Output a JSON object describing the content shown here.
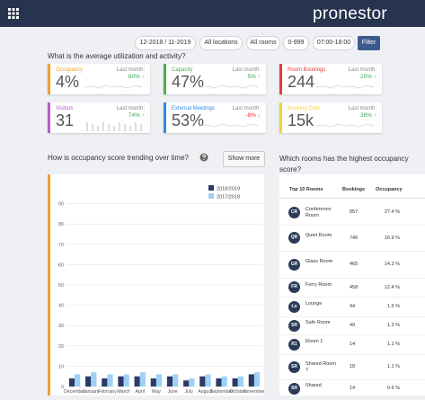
{
  "header": {
    "logo": "pronestor"
  },
  "filters": {
    "items": [
      "12-2018 / 11-2019",
      "All locations",
      "All rooms",
      "0-999",
      "07:00-18:00"
    ],
    "button": "Filter"
  },
  "utilization": {
    "title": "What is the average utilization and activity?",
    "cards": [
      {
        "label": "Occupancy",
        "last_month": "Last month:",
        "change": "60% ↑",
        "value": "4%",
        "color": "#f0a030",
        "change_color": "#3aa757"
      },
      {
        "label": "Capacity",
        "last_month": "Last month:",
        "change": "5% ↑",
        "value": "47%",
        "color": "#4caf50",
        "change_color": "#3aa757"
      },
      {
        "label": "Room Bookings",
        "last_month": "Last month:",
        "change": "25% ↑",
        "value": "244",
        "color": "#e53935",
        "change_color": "#3aa757"
      },
      {
        "label": "Visitors",
        "last_month": "Last month:",
        "change": "74% ↑",
        "value": "31",
        "color": "#b061c8",
        "change_color": "#3aa757"
      },
      {
        "label": "External Meetings",
        "last_month": "Last month:",
        "change": "-8% ↓",
        "value": "53%",
        "color": "#2f8de4",
        "change_color": "#e53935"
      },
      {
        "label": "Booking Cost",
        "last_month": "Last month:",
        "change": "38% ↑",
        "value": "15k",
        "color": "#f3d233",
        "change_color": "#3aa757"
      }
    ]
  },
  "trend": {
    "title": "How is occupancy score trending over time?",
    "button": "Show more"
  },
  "occupancy_chart": {
    "type": "bar",
    "categories": [
      "December",
      "January",
      "February",
      "March",
      "April",
      "May",
      "June",
      "July",
      "August",
      "September",
      "October",
      "November"
    ],
    "series": [
      {
        "name": "2018/2019",
        "color": "#2b3a67",
        "values": [
          4,
          5,
          4,
          5,
          5,
          4,
          5,
          3,
          5,
          4,
          4,
          6
        ]
      },
      {
        "name": "2017/2018",
        "color": "#9fd0f5",
        "values": [
          6,
          7,
          6,
          6,
          7,
          6,
          6,
          4,
          6,
          5,
          5,
          7
        ]
      }
    ],
    "ylim": [
      0,
      100
    ],
    "yticks": [
      0,
      10,
      20,
      30,
      40,
      50,
      60,
      70,
      80,
      90
    ],
    "grid": true,
    "legend": "top-right"
  },
  "rooms": {
    "title": "Which rooms has the highest occupancy score?",
    "table": {
      "header": [
        "Top 10 Rooms",
        "Bookings",
        "Occupancy"
      ],
      "rows": [
        [
          "CR",
          "Conference Room",
          "857",
          "27.4 %"
        ],
        [
          "QR",
          "Quiet Room",
          "746",
          "16.9 %"
        ],
        [
          "GR",
          "Glass Room",
          "465",
          "14.3 %"
        ],
        [
          "FR",
          "Ferry Room",
          "458",
          "12.4 %"
        ],
        [
          "Lo",
          "Lounge",
          "44",
          "1.5 %"
        ],
        [
          "SR",
          "Safe Room",
          "49",
          "1.3 %"
        ],
        [
          "R1",
          "Room 1",
          "14",
          "1.1 %"
        ],
        [
          "SR",
          "Shared Room 7",
          "18",
          "1.1 %"
        ],
        [
          "SR",
          "Shared",
          "14",
          "0.6 %"
        ]
      ]
    }
  }
}
